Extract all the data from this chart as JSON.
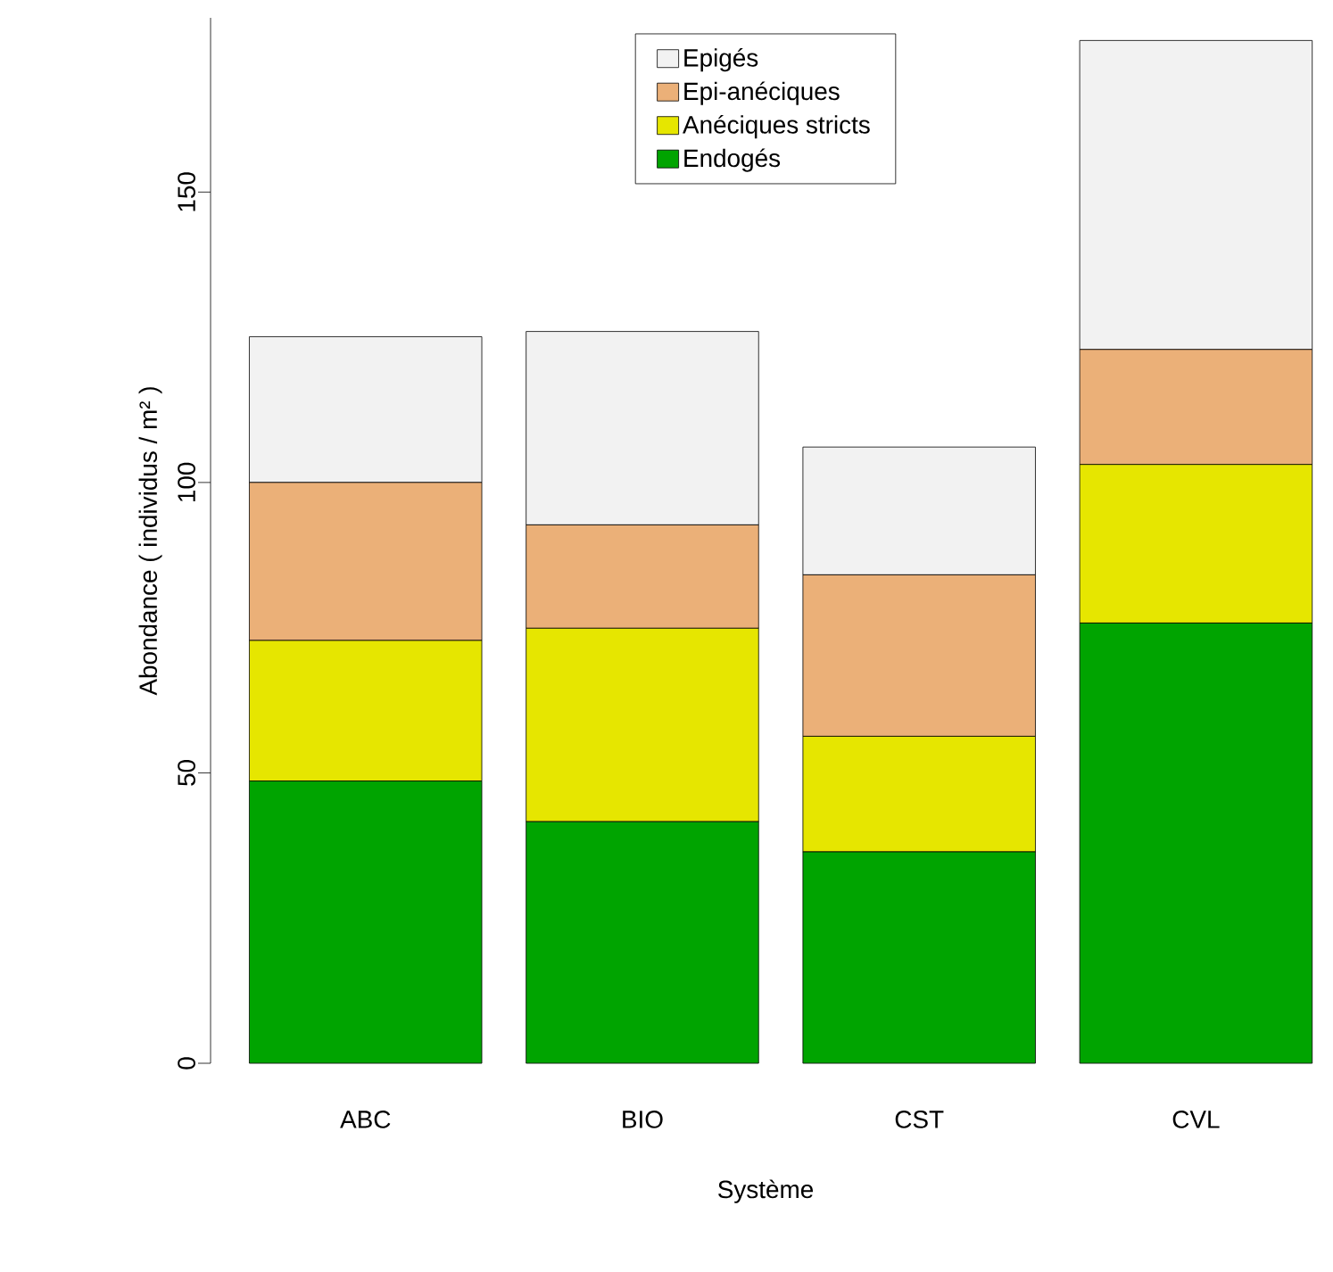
{
  "chart_data": {
    "type": "bar",
    "stacked": true,
    "xlabel": "Système",
    "ylabel": "Abondance ( individus / m² )",
    "categories": [
      "ABC",
      "BIO",
      "CST",
      "CVL"
    ],
    "series": [
      {
        "name": "Endogés",
        "color": "#00a400",
        "values": [
          48.6,
          41.6,
          36.4,
          75.8
        ]
      },
      {
        "name": "Anéciques stricts",
        "color": "#e6e600",
        "values": [
          24.2,
          33.3,
          19.9,
          27.3
        ]
      },
      {
        "name": "Epi-anéciques",
        "color": "#ebb078",
        "values": [
          27.2,
          17.8,
          27.8,
          19.8
        ]
      },
      {
        "name": "Epigés",
        "color": "#f2f2f2",
        "values": [
          25.1,
          33.3,
          22.0,
          53.2
        ]
      }
    ],
    "ylim": [
      0,
      180
    ],
    "yticks": [
      0,
      50,
      100,
      150
    ],
    "legend": "top",
    "grid": false
  }
}
